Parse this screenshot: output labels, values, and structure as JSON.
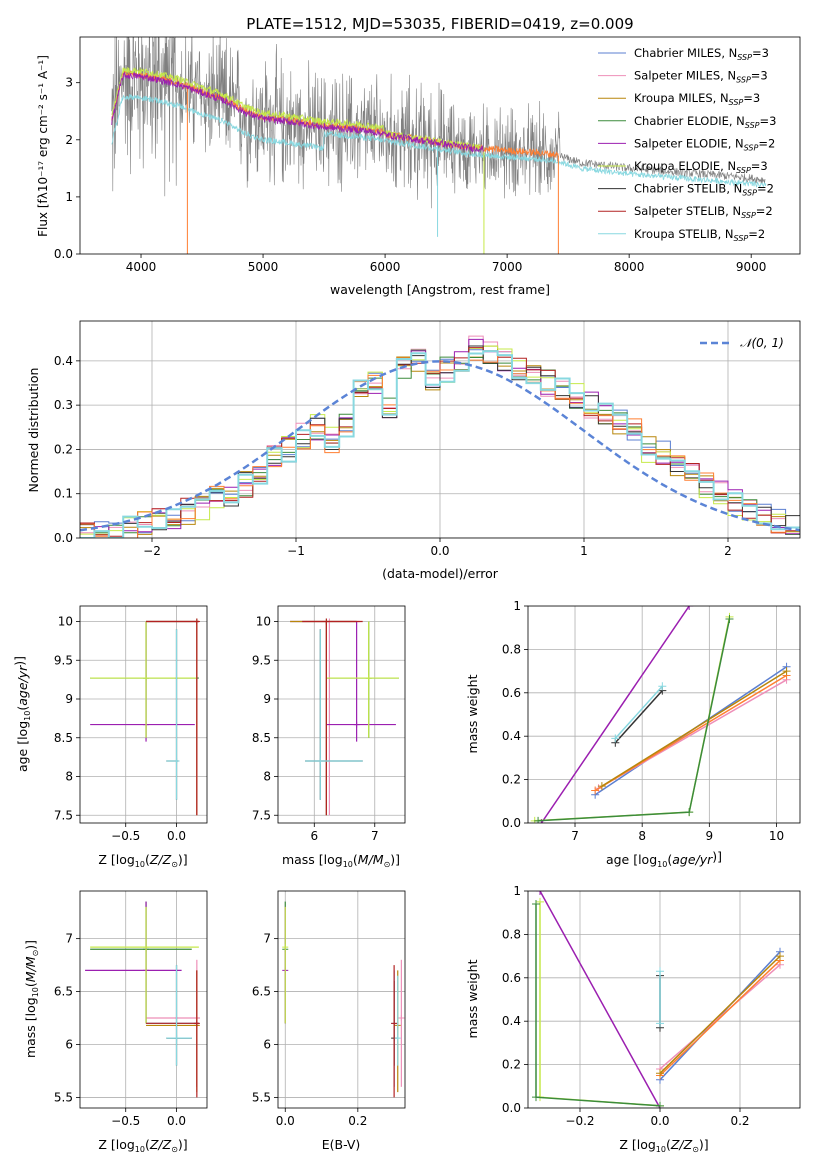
{
  "title": "PLATE=1512, MJD=53035, FIBERID=0419, z=0.009",
  "colors": {
    "Chabrier MILES": "#5b7fd1",
    "Salpeter MILES": "#ee8fb8",
    "Kroupa MILES": "#b8860b",
    "Chabrier ELODIE": "#3c8b3c",
    "Salpeter ELODIE": "#9b1fb0",
    "Kroupa ELODIE": "#c6e94a",
    "Chabrier STELIB": "#333333",
    "Salpeter STELIB": "#b22222",
    "Kroupa STELIB": "#88d8e0",
    "data": "#808080",
    "orange": "#ff7f32",
    "normal": "#5b84d6"
  },
  "chart_data": [
    {
      "id": "spectrum",
      "type": "line",
      "title": "PLATE=1512, MJD=53035, FIBERID=0419, z=0.009",
      "xlabel": "wavelength [Angstrom, rest frame]",
      "ylabel": "Flux [f_λ 10^-17 erg cm^-2 s^-1 A^-1]",
      "xlim": [
        3500,
        9400
      ],
      "ylim": [
        0,
        3.8
      ],
      "xticks": [
        4000,
        5000,
        6000,
        7000,
        8000,
        9000
      ],
      "yticks": [
        0,
        1,
        2,
        3
      ],
      "grid": false,
      "legend": "top-right",
      "legend_entries": [
        {
          "base": "Chabrier MILES, N",
          "sub": "SSP",
          "tail": "=3",
          "color_key": "Chabrier MILES"
        },
        {
          "base": "Salpeter MILES, N",
          "sub": "SSP",
          "tail": "=3",
          "color_key": "Salpeter MILES"
        },
        {
          "base": "Kroupa MILES, N",
          "sub": "SSP",
          "tail": "=3",
          "color_key": "Kroupa MILES"
        },
        {
          "base": "Chabrier ELODIE, N",
          "sub": "SSP",
          "tail": "=3",
          "color_key": "Chabrier ELODIE"
        },
        {
          "base": "Salpeter ELODIE, N",
          "sub": "SSP",
          "tail": "=2",
          "color_key": "Salpeter ELODIE"
        },
        {
          "base": "Kroupa ELODIE, N",
          "sub": "SSP",
          "tail": "=3",
          "color_key": "Kroupa ELODIE"
        },
        {
          "base": "Chabrier STELIB, N",
          "sub": "SSP",
          "tail": "=2",
          "color_key": "Chabrier STELIB"
        },
        {
          "base": "Salpeter STELIB, N",
          "sub": "SSP",
          "tail": "=2",
          "color_key": "Salpeter STELIB"
        },
        {
          "base": "Kroupa STELIB, N",
          "sub": "SSP",
          "tail": "=2",
          "color_key": "Kroupa STELIB"
        }
      ],
      "model_envelope": {
        "x": [
          3750,
          3850,
          3950,
          4100,
          4300,
          4500,
          4700,
          4860,
          5000,
          5200,
          5500,
          5800,
          6100,
          6400,
          6700,
          7000,
          7300,
          7420,
          7600,
          7800,
          8000,
          8300,
          8600,
          8900,
          9100
        ],
        "y": [
          2.2,
          3.1,
          3.1,
          3.05,
          2.95,
          2.8,
          2.65,
          2.45,
          2.35,
          2.3,
          2.2,
          2.15,
          2.05,
          1.95,
          1.85,
          1.8,
          1.75,
          1.72,
          1.6,
          1.55,
          1.5,
          1.45,
          1.4,
          1.35,
          1.3
        ]
      }
    },
    {
      "id": "residuals",
      "type": "line",
      "xlabel": "(data-model)/error",
      "ylabel": "Normed distribution",
      "xlim": [
        -2.5,
        2.5
      ],
      "ylim": [
        0,
        0.49
      ],
      "xticks": [
        -2,
        -1,
        0,
        1,
        2
      ],
      "yticks": [
        0.0,
        0.1,
        0.2,
        0.3,
        0.4
      ],
      "grid": true,
      "legend": "top-right",
      "legend_label": "N(0,1)",
      "hist_bin_width": 0.1,
      "hist_start": -2.5,
      "hist_base": [
        0.01,
        0.01,
        0.02,
        0.02,
        0.03,
        0.04,
        0.05,
        0.06,
        0.07,
        0.09,
        0.1,
        0.12,
        0.15,
        0.18,
        0.2,
        0.23,
        0.25,
        0.22,
        0.25,
        0.33,
        0.35,
        0.3,
        0.38,
        0.4,
        0.35,
        0.38,
        0.4,
        0.43,
        0.42,
        0.4,
        0.38,
        0.36,
        0.35,
        0.34,
        0.32,
        0.3,
        0.28,
        0.26,
        0.24,
        0.2,
        0.19,
        0.16,
        0.14,
        0.12,
        0.1,
        0.08,
        0.07,
        0.05,
        0.04,
        0.03
      ]
    },
    {
      "id": "age-vs-Z",
      "type": "scatter",
      "xlabel": "Z [log10(Z/Z_sun)]",
      "ylabel": "age [log10(age/yr)]",
      "xlim": [
        -0.95,
        0.3
      ],
      "ylim": [
        7.4,
        10.2
      ],
      "xticks": [
        -0.5,
        0.0
      ],
      "yticks": [
        7.5,
        8.0,
        8.5,
        9.0,
        9.5,
        10.0
      ],
      "grid": true,
      "bars": [
        {
          "c": "Chabrier MILES",
          "x": 0.2,
          "y": 10.0,
          "xe": [
            -0.3,
            0.22
          ],
          "ye": [
            7.5,
            10.0
          ]
        },
        {
          "c": "Salpeter MILES",
          "x": 0.2,
          "y": 10.0,
          "xe": [
            -0.3,
            0.23
          ],
          "ye": [
            7.5,
            10.0
          ]
        },
        {
          "c": "Kroupa MILES",
          "x": 0.2,
          "y": 10.0,
          "xe": [
            -0.3,
            0.22
          ],
          "ye": [
            7.5,
            10.0
          ]
        },
        {
          "c": "Chabrier ELODIE",
          "x": -0.3,
          "y": 9.27,
          "xe": [
            -0.85,
            0.22
          ],
          "ye": [
            8.5,
            10.0
          ]
        },
        {
          "c": "Salpeter ELODIE",
          "x": -0.3,
          "y": 8.67,
          "xe": [
            -0.85,
            0.18
          ],
          "ye": [
            8.45,
            10.0
          ]
        },
        {
          "c": "Kroupa ELODIE",
          "x": -0.3,
          "y": 9.27,
          "xe": [
            -0.85,
            0.2
          ],
          "ye": [
            8.5,
            10.0
          ]
        },
        {
          "c": "Chabrier STELIB",
          "x": 0.0,
          "y": 8.2,
          "xe": [
            -0.1,
            0.02
          ],
          "ye": [
            7.7,
            9.9
          ]
        },
        {
          "c": "Salpeter STELIB",
          "x": 0.2,
          "y": 10.0,
          "xe": [
            -0.3,
            0.22
          ],
          "ye": [
            7.5,
            10.0
          ]
        },
        {
          "c": "Kroupa STELIB",
          "x": 0.0,
          "y": 8.2,
          "xe": [
            -0.1,
            0.02
          ],
          "ye": [
            7.7,
            9.9
          ]
        }
      ]
    },
    {
      "id": "age-vs-mass",
      "type": "scatter",
      "xlabel": "mass [log10(M/M_sun)]",
      "ylabel": "",
      "xlim": [
        5.4,
        7.5
      ],
      "ylim": [
        7.4,
        10.2
      ],
      "xticks": [
        6,
        7
      ],
      "yticks": [
        7.5,
        8.0,
        8.5,
        9.0,
        9.5,
        10.0
      ],
      "grid": true,
      "bars": [
        {
          "c": "Chabrier MILES",
          "x": 6.2,
          "y": 10.0,
          "xe": [
            5.6,
            6.7
          ],
          "ye": [
            7.5,
            10.0
          ]
        },
        {
          "c": "Salpeter MILES",
          "x": 6.25,
          "y": 10.0,
          "xe": [
            5.6,
            6.75
          ],
          "ye": [
            7.5,
            10.0
          ]
        },
        {
          "c": "Kroupa MILES",
          "x": 6.2,
          "y": 10.0,
          "xe": [
            5.6,
            6.7
          ],
          "ye": [
            7.5,
            10.0
          ]
        },
        {
          "c": "Chabrier ELODIE",
          "x": 6.9,
          "y": 9.27,
          "xe": [
            6.2,
            7.4
          ],
          "ye": [
            8.5,
            10.0
          ]
        },
        {
          "c": "Salpeter ELODIE",
          "x": 6.7,
          "y": 8.67,
          "xe": [
            6.2,
            7.35
          ],
          "ye": [
            8.45,
            10.0
          ]
        },
        {
          "c": "Kroupa ELODIE",
          "x": 6.9,
          "y": 9.27,
          "xe": [
            6.2,
            7.4
          ],
          "ye": [
            8.5,
            10.0
          ]
        },
        {
          "c": "Chabrier STELIB",
          "x": 6.1,
          "y": 8.2,
          "xe": [
            5.85,
            6.8
          ],
          "ye": [
            7.7,
            9.9
          ]
        },
        {
          "c": "Salpeter STELIB",
          "x": 6.2,
          "y": 10.0,
          "xe": [
            5.8,
            6.8
          ],
          "ye": [
            7.5,
            10.0
          ]
        },
        {
          "c": "Kroupa STELIB",
          "x": 6.1,
          "y": 8.2,
          "xe": [
            5.85,
            6.8
          ],
          "ye": [
            7.7,
            9.9
          ]
        }
      ]
    },
    {
      "id": "weight-vs-age",
      "type": "line",
      "xlabel": "age [log10(age/yr)]",
      "ylabel": "mass weight",
      "xlim": [
        6.3,
        10.35
      ],
      "ylim": [
        0,
        1.0
      ],
      "xticks": [
        7,
        8,
        9,
        10
      ],
      "yticks": [
        0.0,
        0.2,
        0.4,
        0.6,
        0.8,
        1.0
      ],
      "grid": true,
      "lines": [
        {
          "c": "Chabrier MILES",
          "x": [
            7.3,
            10.15
          ],
          "y": [
            0.13,
            0.72
          ]
        },
        {
          "c": "Salpeter MILES",
          "x": [
            7.35,
            10.15
          ],
          "y": [
            0.16,
            0.66
          ]
        },
        {
          "c": "orange",
          "x": [
            7.3,
            10.15
          ],
          "y": [
            0.15,
            0.68
          ]
        },
        {
          "c": "Kroupa MILES",
          "x": [
            7.4,
            10.15
          ],
          "y": [
            0.17,
            0.7
          ]
        },
        {
          "c": "Salpeter ELODIE",
          "x": [
            6.5,
            8.7
          ],
          "y": [
            0.0,
            1.0
          ]
        },
        {
          "c": "Kroupa ELODIE",
          "x": [
            6.4,
            8.7,
            9.3
          ],
          "y": [
            0.01,
            0.05,
            0.95
          ]
        },
        {
          "c": "Chabrier ELODIE",
          "x": [
            6.45,
            8.7,
            9.3
          ],
          "y": [
            0.01,
            0.05,
            0.94
          ]
        },
        {
          "c": "Chabrier STELIB",
          "x": [
            7.6,
            8.3
          ],
          "y": [
            0.37,
            0.61
          ]
        },
        {
          "c": "Kroupa STELIB",
          "x": [
            7.6,
            8.3
          ],
          "y": [
            0.39,
            0.63
          ]
        }
      ]
    },
    {
      "id": "mass-vs-Z",
      "type": "scatter",
      "xlabel": "Z [log10(Z/Z_sun)]",
      "ylabel": "mass [log10(M/M_sun)]",
      "xlim": [
        -0.95,
        0.3
      ],
      "ylim": [
        5.4,
        7.45
      ],
      "xticks": [
        -0.5,
        0.0
      ],
      "yticks": [
        5.5,
        6.0,
        6.5,
        7.0
      ],
      "grid": true,
      "bars": [
        {
          "c": "Chabrier MILES",
          "x": 0.2,
          "y": 6.2,
          "xe": [
            -0.3,
            0.22
          ],
          "ye": [
            5.6,
            6.7
          ]
        },
        {
          "c": "Salpeter MILES",
          "x": 0.2,
          "y": 6.25,
          "xe": [
            -0.3,
            0.23
          ],
          "ye": [
            5.6,
            6.8
          ]
        },
        {
          "c": "Kroupa MILES",
          "x": 0.2,
          "y": 6.18,
          "xe": [
            -0.3,
            0.22
          ],
          "ye": [
            5.55,
            6.7
          ]
        },
        {
          "c": "Chabrier ELODIE",
          "x": -0.3,
          "y": 6.9,
          "xe": [
            -0.85,
            0.15
          ],
          "ye": [
            6.2,
            7.35
          ]
        },
        {
          "c": "Salpeter ELODIE",
          "x": -0.3,
          "y": 6.7,
          "xe": [
            -0.9,
            0.05
          ],
          "ye": [
            6.2,
            7.35
          ]
        },
        {
          "c": "Kroupa ELODIE",
          "x": -0.3,
          "y": 6.92,
          "xe": [
            -0.85,
            0.22
          ],
          "ye": [
            6.2,
            7.3
          ]
        },
        {
          "c": "Chabrier STELIB",
          "x": 0.0,
          "y": 6.06,
          "xe": [
            -0.1,
            0.15
          ],
          "ye": [
            5.8,
            6.75
          ]
        },
        {
          "c": "Salpeter STELIB",
          "x": 0.2,
          "y": 6.2,
          "xe": [
            -0.3,
            0.22
          ],
          "ye": [
            5.5,
            6.7
          ]
        },
        {
          "c": "Kroupa STELIB",
          "x": 0.0,
          "y": 6.06,
          "xe": [
            -0.1,
            0.15
          ],
          "ye": [
            5.8,
            6.75
          ]
        }
      ]
    },
    {
      "id": "mass-vs-EBV",
      "type": "scatter",
      "xlabel": "E(B-V)",
      "ylabel": "",
      "xlim": [
        -0.02,
        0.33
      ],
      "ylim": [
        5.4,
        7.45
      ],
      "xticks": [
        0.0,
        0.2
      ],
      "yticks": [
        5.5,
        6.0,
        6.5,
        7.0
      ],
      "grid": true,
      "bars": [
        {
          "c": "Chabrier MILES",
          "x": 0.3,
          "y": 6.2,
          "xe": [
            0.3,
            0.3
          ],
          "ye": [
            5.6,
            6.7
          ]
        },
        {
          "c": "Salpeter MILES",
          "x": 0.32,
          "y": 6.25,
          "xe": [
            0.32,
            0.32
          ],
          "ye": [
            5.6,
            6.8
          ]
        },
        {
          "c": "Kroupa MILES",
          "x": 0.31,
          "y": 6.18,
          "xe": [
            0.31,
            0.31
          ],
          "ye": [
            5.55,
            6.7
          ]
        },
        {
          "c": "Chabrier ELODIE",
          "x": 0.0,
          "y": 6.9,
          "xe": [
            0.0,
            0.0
          ],
          "ye": [
            6.2,
            7.35
          ]
        },
        {
          "c": "Salpeter ELODIE",
          "x": 0.0,
          "y": 6.7,
          "xe": [
            0.0,
            0.0
          ],
          "ye": [
            6.2,
            7.3
          ]
        },
        {
          "c": "Kroupa ELODIE",
          "x": 0.0,
          "y": 6.92,
          "xe": [
            0.0,
            0.0
          ],
          "ye": [
            6.2,
            7.3
          ]
        },
        {
          "c": "Chabrier STELIB",
          "x": 0.3,
          "y": 6.06,
          "xe": [
            0.3,
            0.3
          ],
          "ye": [
            5.8,
            6.6
          ]
        },
        {
          "c": "Salpeter STELIB",
          "x": 0.3,
          "y": 6.2,
          "xe": [
            0.3,
            0.3
          ],
          "ye": [
            5.5,
            6.75
          ]
        },
        {
          "c": "Kroupa STELIB",
          "x": 0.31,
          "y": 6.06,
          "xe": [
            0.31,
            0.31
          ],
          "ye": [
            5.8,
            6.65
          ]
        }
      ]
    },
    {
      "id": "weight-vs-Z",
      "type": "line",
      "xlabel": "Z [log10(Z/Z_sun)]",
      "ylabel": "mass weight",
      "xlim": [
        -0.33,
        0.35
      ],
      "ylim": [
        0,
        1.0
      ],
      "xticks": [
        -0.2,
        0.0,
        0.2
      ],
      "yticks": [
        0.0,
        0.2,
        0.4,
        0.6,
        0.8,
        1.0
      ],
      "grid": true,
      "lines": [
        {
          "c": "Chabrier MILES",
          "x": [
            0.0,
            0.3
          ],
          "y": [
            0.13,
            0.72
          ]
        },
        {
          "c": "Salpeter MILES",
          "x": [
            0.0,
            0.3
          ],
          "y": [
            0.18,
            0.66
          ]
        },
        {
          "c": "orange",
          "x": [
            0.0,
            0.3
          ],
          "y": [
            0.15,
            0.68
          ]
        },
        {
          "c": "Kroupa MILES",
          "x": [
            0.0,
            0.3
          ],
          "y": [
            0.16,
            0.7
          ]
        },
        {
          "c": "Salpeter ELODIE",
          "x": [
            -0.3,
            0.0
          ],
          "y": [
            1.0,
            0.0
          ]
        },
        {
          "c": "Kroupa ELODIE",
          "x": [
            -0.3,
            -0.3,
            0.0
          ],
          "y": [
            0.95,
            0.05,
            0.01
          ]
        },
        {
          "c": "Chabrier ELODIE",
          "x": [
            -0.31,
            -0.31,
            0.0
          ],
          "y": [
            0.94,
            0.05,
            0.01
          ]
        },
        {
          "c": "Chabrier STELIB",
          "x": [
            0.0,
            0.0
          ],
          "y": [
            0.37,
            0.61
          ]
        },
        {
          "c": "Kroupa STELIB",
          "x": [
            0.0,
            0.0
          ],
          "y": [
            0.39,
            0.63
          ]
        }
      ]
    }
  ]
}
